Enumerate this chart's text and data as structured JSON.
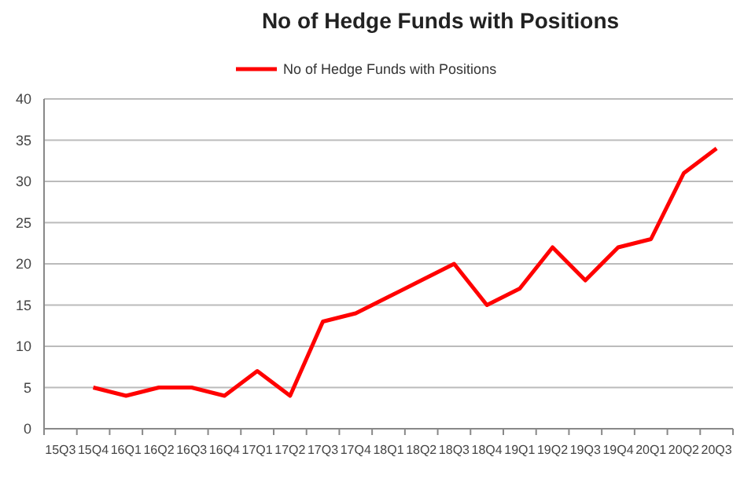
{
  "chart_data": {
    "type": "line",
    "title": "No of Hedge Funds with Positions",
    "categories": [
      "15Q3",
      "15Q4",
      "16Q1",
      "16Q2",
      "16Q3",
      "16Q4",
      "17Q1",
      "17Q2",
      "17Q3",
      "17Q4",
      "18Q1",
      "18Q2",
      "18Q3",
      "18Q4",
      "19Q1",
      "19Q2",
      "19Q3",
      "19Q4",
      "20Q1",
      "20Q2",
      "20Q3"
    ],
    "series": [
      {
        "name": "No of Hedge Funds with Positions",
        "color": "#ff0000",
        "values": [
          null,
          5,
          4,
          5,
          5,
          4,
          7,
          4,
          13,
          14,
          16,
          18,
          20,
          15,
          17,
          22,
          18,
          22,
          23,
          31,
          34
        ]
      }
    ],
    "ylim": [
      0,
      40
    ],
    "yticks": [
      0,
      5,
      10,
      15,
      20,
      25,
      30,
      35,
      40
    ],
    "grid": "y",
    "legend": "top",
    "marker": "none",
    "line_style": "solid"
  }
}
